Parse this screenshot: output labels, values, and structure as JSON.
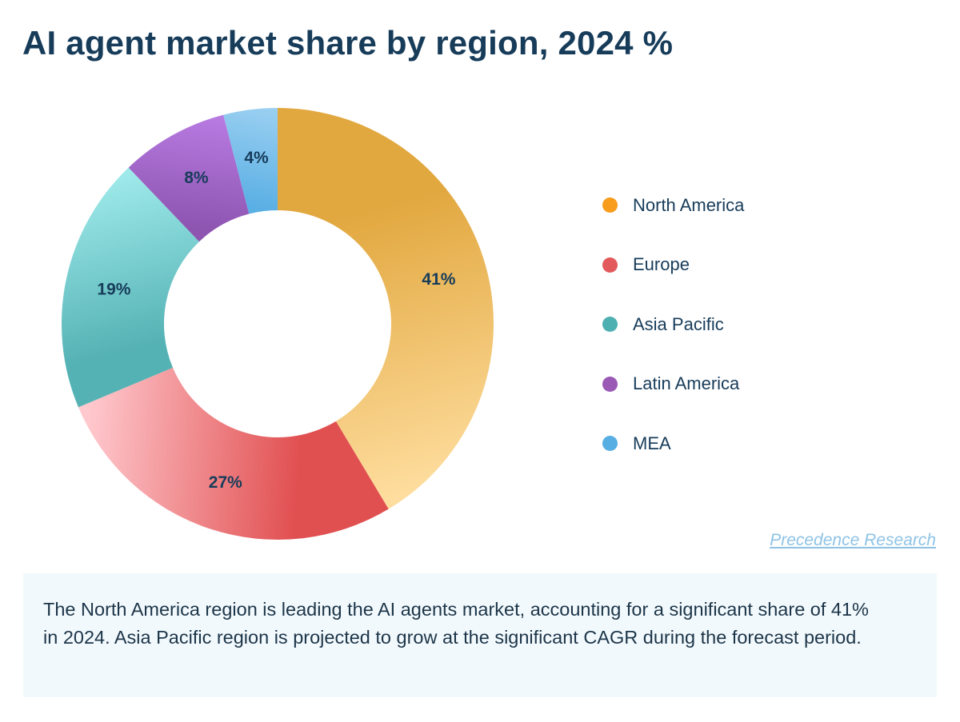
{
  "title": "AI agent market share by region, 2024 %",
  "chart_data": {
    "type": "pie",
    "variant": "donut",
    "title": "AI agent market share by region, 2024 %",
    "unit": "%",
    "categories": [
      "North America",
      "Europe",
      "Asia Pacific",
      "Latin America",
      "MEA"
    ],
    "values": [
      41,
      27,
      19,
      8,
      4
    ],
    "labels": [
      "41%",
      "27%",
      "19%",
      "8%",
      "4%"
    ],
    "legend_position": "right",
    "colors": {
      "legend": [
        "#f89c1c",
        "#e25a5c",
        "#4fb0b2",
        "#9b59b6",
        "#57aee3"
      ],
      "gradient_light": [
        "#fedd9e",
        "#ffc9ce",
        "#9ee9ea",
        "#b87be2",
        "#9bd0f1"
      ],
      "gradient_dark": [
        "#e2a840",
        "#e15051",
        "#55b2b4",
        "#8d55b0",
        "#5aafe4"
      ]
    }
  },
  "source": "Precedence Research",
  "note": "The North America region is leading the AI agents market, accounting for a significant share of 41% in 2024. Asia Pacific region is projected to grow at the significant CAGR during the forecast period."
}
